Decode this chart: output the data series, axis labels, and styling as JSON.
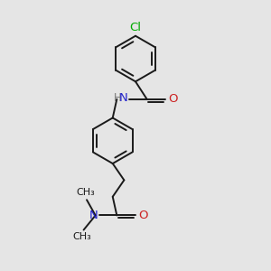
{
  "bg_color": "#e5e5e5",
  "bond_color": "#1a1a1a",
  "bond_width": 1.4,
  "cl_color": "#00aa00",
  "n_color": "#2222cc",
  "o_color": "#cc2222",
  "h_color": "#777777",
  "figsize": [
    3.0,
    3.0
  ],
  "dpi": 100,
  "xlim": [
    0,
    10
  ],
  "ylim": [
    0,
    13
  ]
}
